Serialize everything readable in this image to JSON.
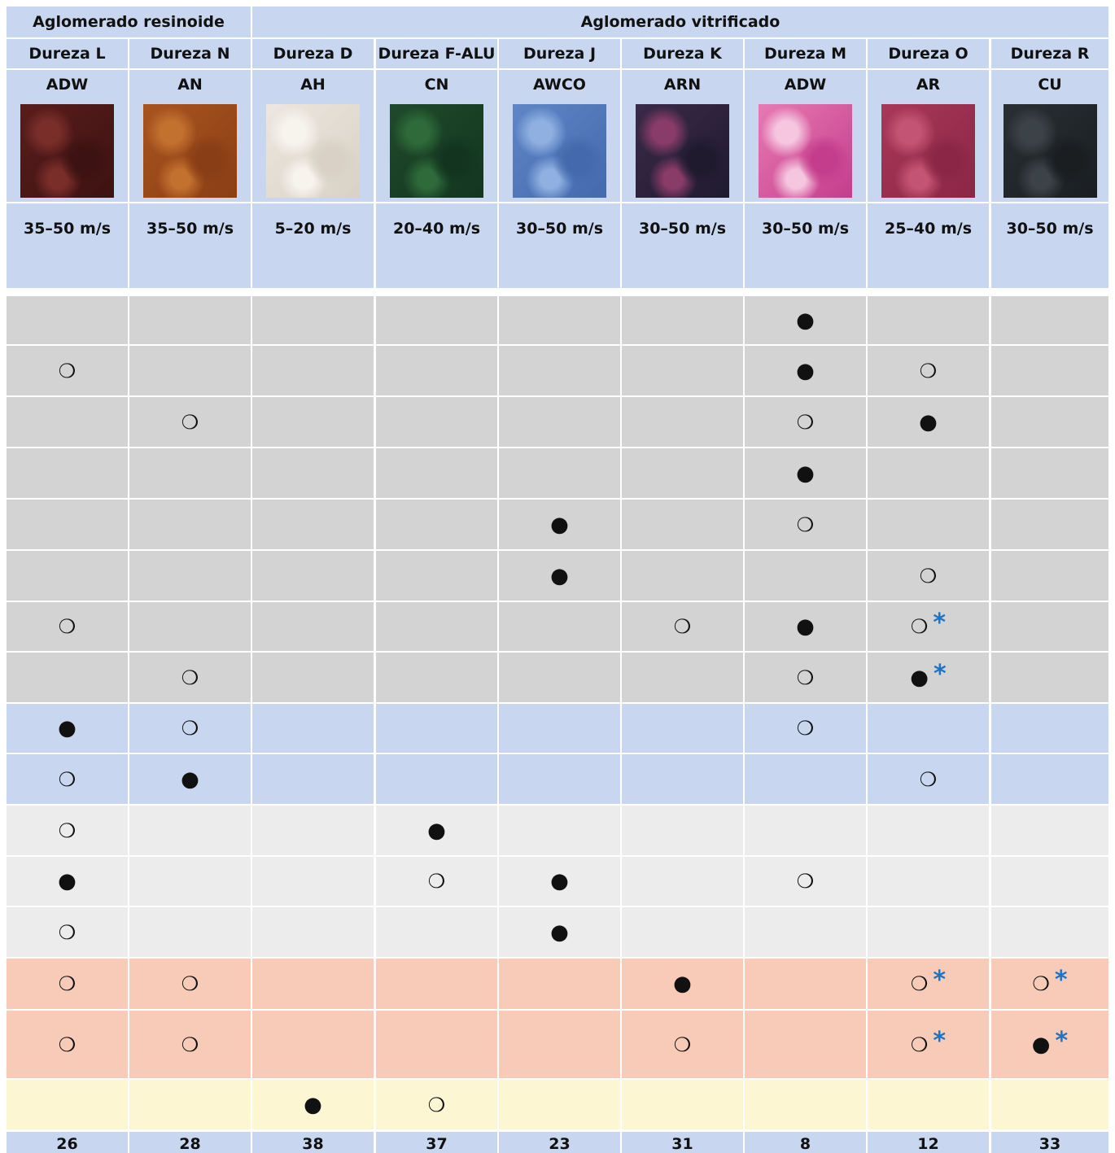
{
  "colors": {
    "header_bg": "#c8d6ef",
    "row_gray": "#d3d3d3",
    "row_blue": "#c8d6ef",
    "row_lightgray": "#ececec",
    "row_salmon": "#f8cbb8",
    "row_yellow": "#fdf6d2",
    "footer_bg": "#c8d6ef",
    "star": "#1f73c3"
  },
  "groups": [
    "Aglomerado resinoide",
    "Aglomerado vitrificado"
  ],
  "columns": [
    {
      "hardness": "Dureza L",
      "code": "ADW",
      "speed": "35–50 m/s",
      "page": "26",
      "swatch": [
        "#5a1c1c",
        "#7a2e2a",
        "#3d1212"
      ]
    },
    {
      "hardness": "Dureza N",
      "code": "AN",
      "speed": "35–50 m/s",
      "page": "28",
      "swatch": [
        "#a85420",
        "#c2712f",
        "#8a3e15"
      ]
    },
    {
      "hardness": "Dureza D",
      "code": "AH",
      "speed": "5–20 m/s",
      "page": "38",
      "swatch": [
        "#ece7df",
        "#f7f4ee",
        "#d9d1c5"
      ]
    },
    {
      "hardness": "Dureza F-ALU",
      "code": "CN",
      "speed": "20–40 m/s",
      "page": "37",
      "swatch": [
        "#1f4a2a",
        "#2e6a3a",
        "#133520"
      ]
    },
    {
      "hardness": "Dureza J",
      "code": "AWCO",
      "speed": "30–50 m/s",
      "page": "23",
      "swatch": [
        "#5f86c8",
        "#8fb0e0",
        "#4469ad"
      ]
    },
    {
      "hardness": "Dureza K",
      "code": "ARN",
      "speed": "30–50 m/s",
      "page": "31",
      "swatch": [
        "#3b2a4a",
        "#8a3c68",
        "#1f1a2e"
      ]
    },
    {
      "hardness": "Dureza M",
      "code": "ADW",
      "speed": "30–50 m/s",
      "page": "8",
      "swatch": [
        "#e77ab3",
        "#f6c6e0",
        "#c43d8c"
      ]
    },
    {
      "hardness": "Dureza O",
      "code": "AR",
      "speed": "25–40 m/s",
      "page": "12",
      "swatch": [
        "#a8385a",
        "#c45474",
        "#8b2646"
      ]
    },
    {
      "hardness": "Dureza R",
      "code": "CU",
      "speed": "30–50 m/s",
      "page": "33",
      "swatch": [
        "#2a2f33",
        "#3c4348",
        "#1a1e21"
      ]
    }
  ],
  "rows": [
    {
      "band": "gray",
      "marks": [
        "",
        "",
        "",
        "",
        "",
        "",
        "full",
        "",
        ""
      ]
    },
    {
      "band": "gray",
      "marks": [
        "open",
        "",
        "",
        "",
        "",
        "",
        "full",
        "open",
        ""
      ]
    },
    {
      "band": "gray",
      "marks": [
        "",
        "open",
        "",
        "",
        "",
        "",
        "open",
        "full",
        ""
      ]
    },
    {
      "band": "gray",
      "marks": [
        "",
        "",
        "",
        "",
        "",
        "",
        "full",
        "",
        ""
      ]
    },
    {
      "band": "gray",
      "marks": [
        "",
        "",
        "",
        "",
        "full",
        "",
        "open",
        "",
        ""
      ]
    },
    {
      "band": "gray",
      "marks": [
        "",
        "",
        "",
        "",
        "full",
        "",
        "",
        "open",
        ""
      ]
    },
    {
      "band": "gray",
      "marks": [
        "open",
        "",
        "",
        "",
        "",
        "open",
        "full",
        "open*",
        ""
      ]
    },
    {
      "band": "gray",
      "marks": [
        "",
        "open",
        "",
        "",
        "",
        "",
        "open",
        "full*",
        ""
      ]
    },
    {
      "band": "blue",
      "marks": [
        "full",
        "open",
        "",
        "",
        "",
        "",
        "open",
        "",
        ""
      ]
    },
    {
      "band": "blue",
      "marks": [
        "open",
        "full",
        "",
        "",
        "",
        "",
        "",
        "open",
        ""
      ]
    },
    {
      "band": "lightgray",
      "marks": [
        "open",
        "",
        "",
        "full",
        "",
        "",
        "",
        "",
        ""
      ]
    },
    {
      "band": "lightgray",
      "marks": [
        "full",
        "",
        "",
        "open",
        "full",
        "",
        "open",
        "",
        ""
      ]
    },
    {
      "band": "lightgray",
      "marks": [
        "open",
        "",
        "",
        "",
        "full",
        "",
        "",
        "",
        ""
      ]
    },
    {
      "band": "salmon",
      "marks": [
        "open",
        "open",
        "",
        "",
        "",
        "full",
        "",
        "open*",
        "open*"
      ]
    },
    {
      "band": "salmon",
      "marks": [
        "open",
        "open",
        "",
        "",
        "",
        "open",
        "",
        "open*",
        "full*"
      ]
    },
    {
      "band": "yellow",
      "marks": [
        "",
        "",
        "full",
        "open",
        "",
        "",
        "",
        "",
        ""
      ]
    }
  ],
  "symbols": {
    "full": "●",
    "open": "❍",
    "star": "*"
  }
}
